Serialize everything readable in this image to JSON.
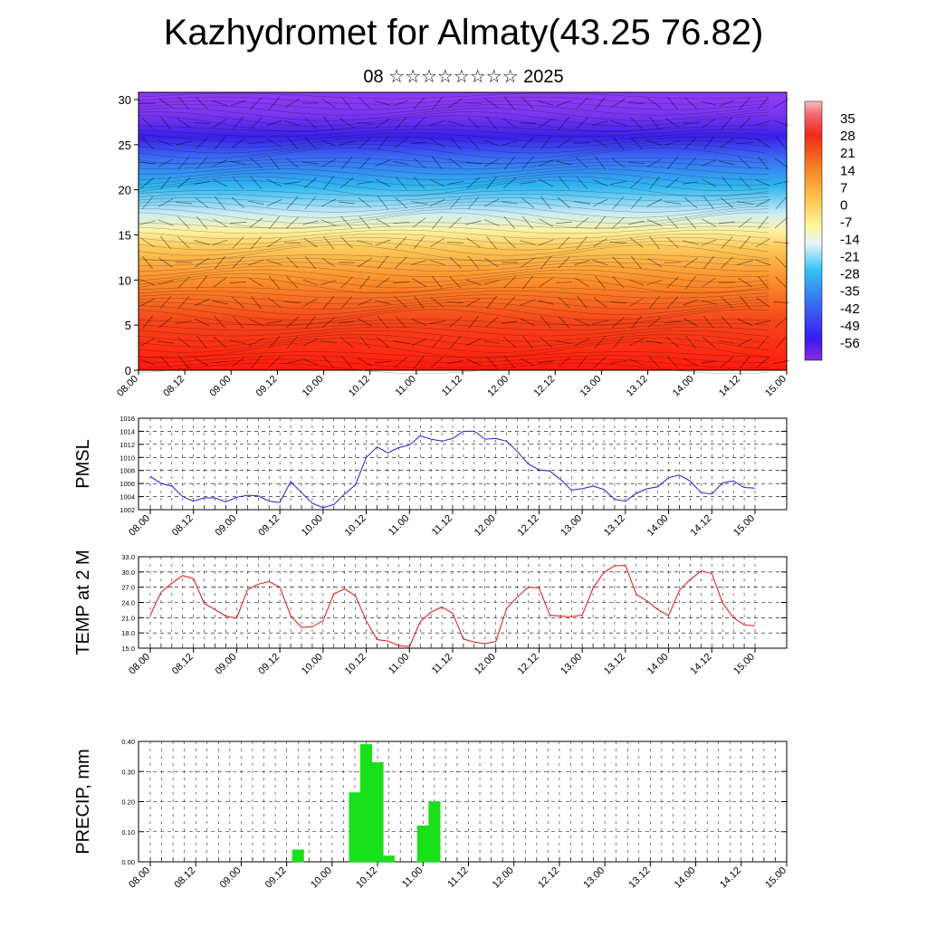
{
  "title": "Kazhydromet for Almaty(43.25 76.82)",
  "subtitle": "08 ☆☆☆☆☆☆☆☆ 2025",
  "colors": {
    "pmsl": "#1f1fd6",
    "temp": "#e01010",
    "precip": "#19e019",
    "grid": "#000000"
  },
  "time_ticks": [
    "08.00",
    "08.12",
    "09.00",
    "09.12",
    "10.00",
    "10.12",
    "11.00",
    "11.12",
    "12.00",
    "12.12",
    "13.00",
    "13.12",
    "14.00",
    "14.12",
    "15.00"
  ],
  "chart_data": [
    {
      "type": "heatmap",
      "name": "cross-section",
      "y_ticks": [
        "0",
        "5",
        "10",
        "15",
        "20",
        "25",
        "30"
      ],
      "ylim": [
        0,
        30.8
      ],
      "colorbar_labels": [
        "35",
        "28",
        "21",
        "14",
        "7",
        "0",
        "-7",
        "-14",
        "-21",
        "-28",
        "-35",
        "-42",
        "-49",
        "-56"
      ],
      "colorbar_range": [
        -63,
        42
      ]
    },
    {
      "type": "line",
      "ylabel": "PMSL",
      "ylim": [
        1002,
        1016
      ],
      "y_ticks": [
        "1016",
        "1014",
        "1012",
        "1010",
        "1008",
        "1006",
        "1004",
        "1002"
      ],
      "values": [
        1007.1,
        1006.0,
        1005.6,
        1004.0,
        1003.3,
        1003.8,
        1003.8,
        1003.2,
        1003.9,
        1004.2,
        1004.1,
        1003.3,
        1003.1,
        1006.3,
        1004.6,
        1003.0,
        1002.3,
        1002.8,
        1004.4,
        1005.8,
        1010.0,
        1011.6,
        1010.7,
        1011.5,
        1011.9,
        1013.3,
        1012.8,
        1012.5,
        1012.9,
        1014.0,
        1014.0,
        1012.8,
        1012.9,
        1012.5,
        1010.9,
        1009.0,
        1008.1,
        1007.9,
        1006.6,
        1005.0,
        1005.2,
        1005.6,
        1005.1,
        1003.6,
        1003.3,
        1004.5,
        1005.2,
        1005.5,
        1006.9,
        1007.3,
        1006.4,
        1004.6,
        1004.4,
        1006.1,
        1006.4,
        1005.4,
        1005.3
      ]
    },
    {
      "type": "line",
      "ylabel": "TEMP at 2 M",
      "ylim": [
        15,
        33
      ],
      "y_ticks": [
        "33.0",
        "30.0",
        "27.0",
        "24.0",
        "21.0",
        "18.0",
        "15.0"
      ],
      "values": [
        21.5,
        26.0,
        27.8,
        29.3,
        28.7,
        23.8,
        22.6,
        21.3,
        20.9,
        26.5,
        27.6,
        28.1,
        27.0,
        21.4,
        19.1,
        19.2,
        20.4,
        25.7,
        26.7,
        25.3,
        20.4,
        16.7,
        16.4,
        15.5,
        15.3,
        20.2,
        22.1,
        23.1,
        21.9,
        16.8,
        16.2,
        15.9,
        16.3,
        22.8,
        25.1,
        27.0,
        26.9,
        21.5,
        21.3,
        21.2,
        21.5,
        26.8,
        29.9,
        31.2,
        31.3,
        25.6,
        24.3,
        22.6,
        21.4,
        26.4,
        28.5,
        30.2,
        29.7,
        23.9,
        21.0,
        19.6,
        19.4
      ]
    },
    {
      "type": "bar",
      "ylabel": "PRECIP, mm",
      "ylim": [
        0,
        0.4
      ],
      "y_ticks": [
        "0.40",
        "0.30",
        "0.20",
        "0.10",
        "0.00"
      ],
      "values": [
        0,
        0,
        0,
        0,
        0,
        0,
        0,
        0,
        0,
        0,
        0,
        0,
        0,
        0.04,
        0,
        0,
        0,
        0,
        0.23,
        0.39,
        0.33,
        0.02,
        0,
        0,
        0.12,
        0.2,
        0,
        0,
        0,
        0,
        0,
        0,
        0,
        0,
        0,
        0,
        0,
        0,
        0,
        0,
        0,
        0,
        0,
        0,
        0,
        0,
        0,
        0,
        0,
        0,
        0,
        0,
        0,
        0,
        0,
        0,
        0
      ]
    }
  ]
}
